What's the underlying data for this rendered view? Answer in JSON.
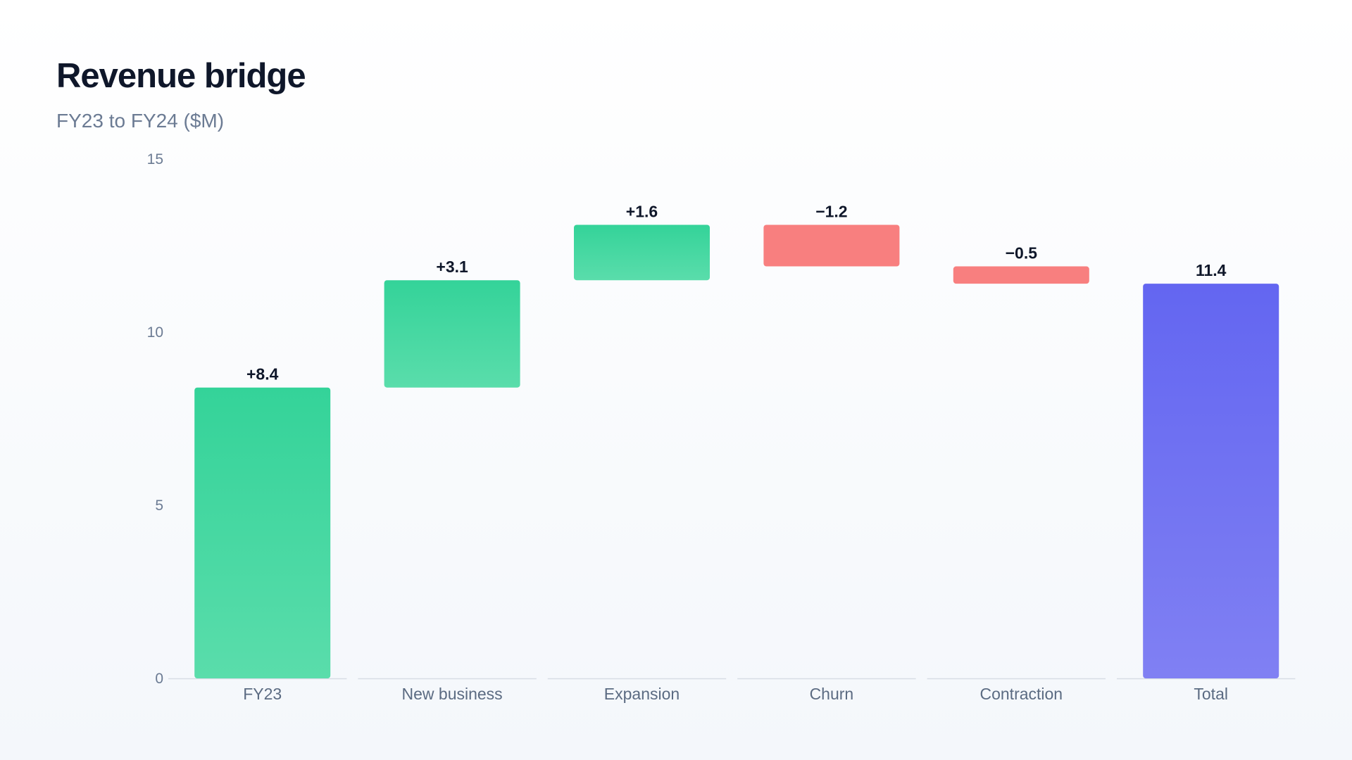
{
  "title": "Revenue bridge",
  "subtitle": "FY23 to FY24 ($M)",
  "colors": {
    "increase_top": "#34d399",
    "increase_bottom": "#5addab",
    "decrease": "#f87f7f",
    "total_top": "#6366f1",
    "total_bottom": "#8080f3",
    "baseline": "#d7dde5"
  },
  "chart_data": {
    "type": "bar",
    "subtype": "waterfall",
    "title": "Revenue bridge",
    "subtitle": "FY23 to FY24 ($M)",
    "xlabel": "",
    "ylabel": "",
    "ylim": [
      0,
      15
    ],
    "yticks": [
      "0",
      "5",
      "10",
      "15"
    ],
    "grid": false,
    "categories": [
      "FY23",
      "New business",
      "Expansion",
      "Churn",
      "Contraction",
      "Total"
    ],
    "values": [
      8.4,
      3.1,
      1.6,
      -1.2,
      -0.5,
      11.4
    ],
    "kinds": [
      "increase",
      "increase",
      "increase",
      "decrease",
      "decrease",
      "total"
    ],
    "labels": [
      "+8.4",
      "+3.1",
      "+1.6",
      "−1.2",
      "−0.5",
      "11.4"
    ]
  }
}
